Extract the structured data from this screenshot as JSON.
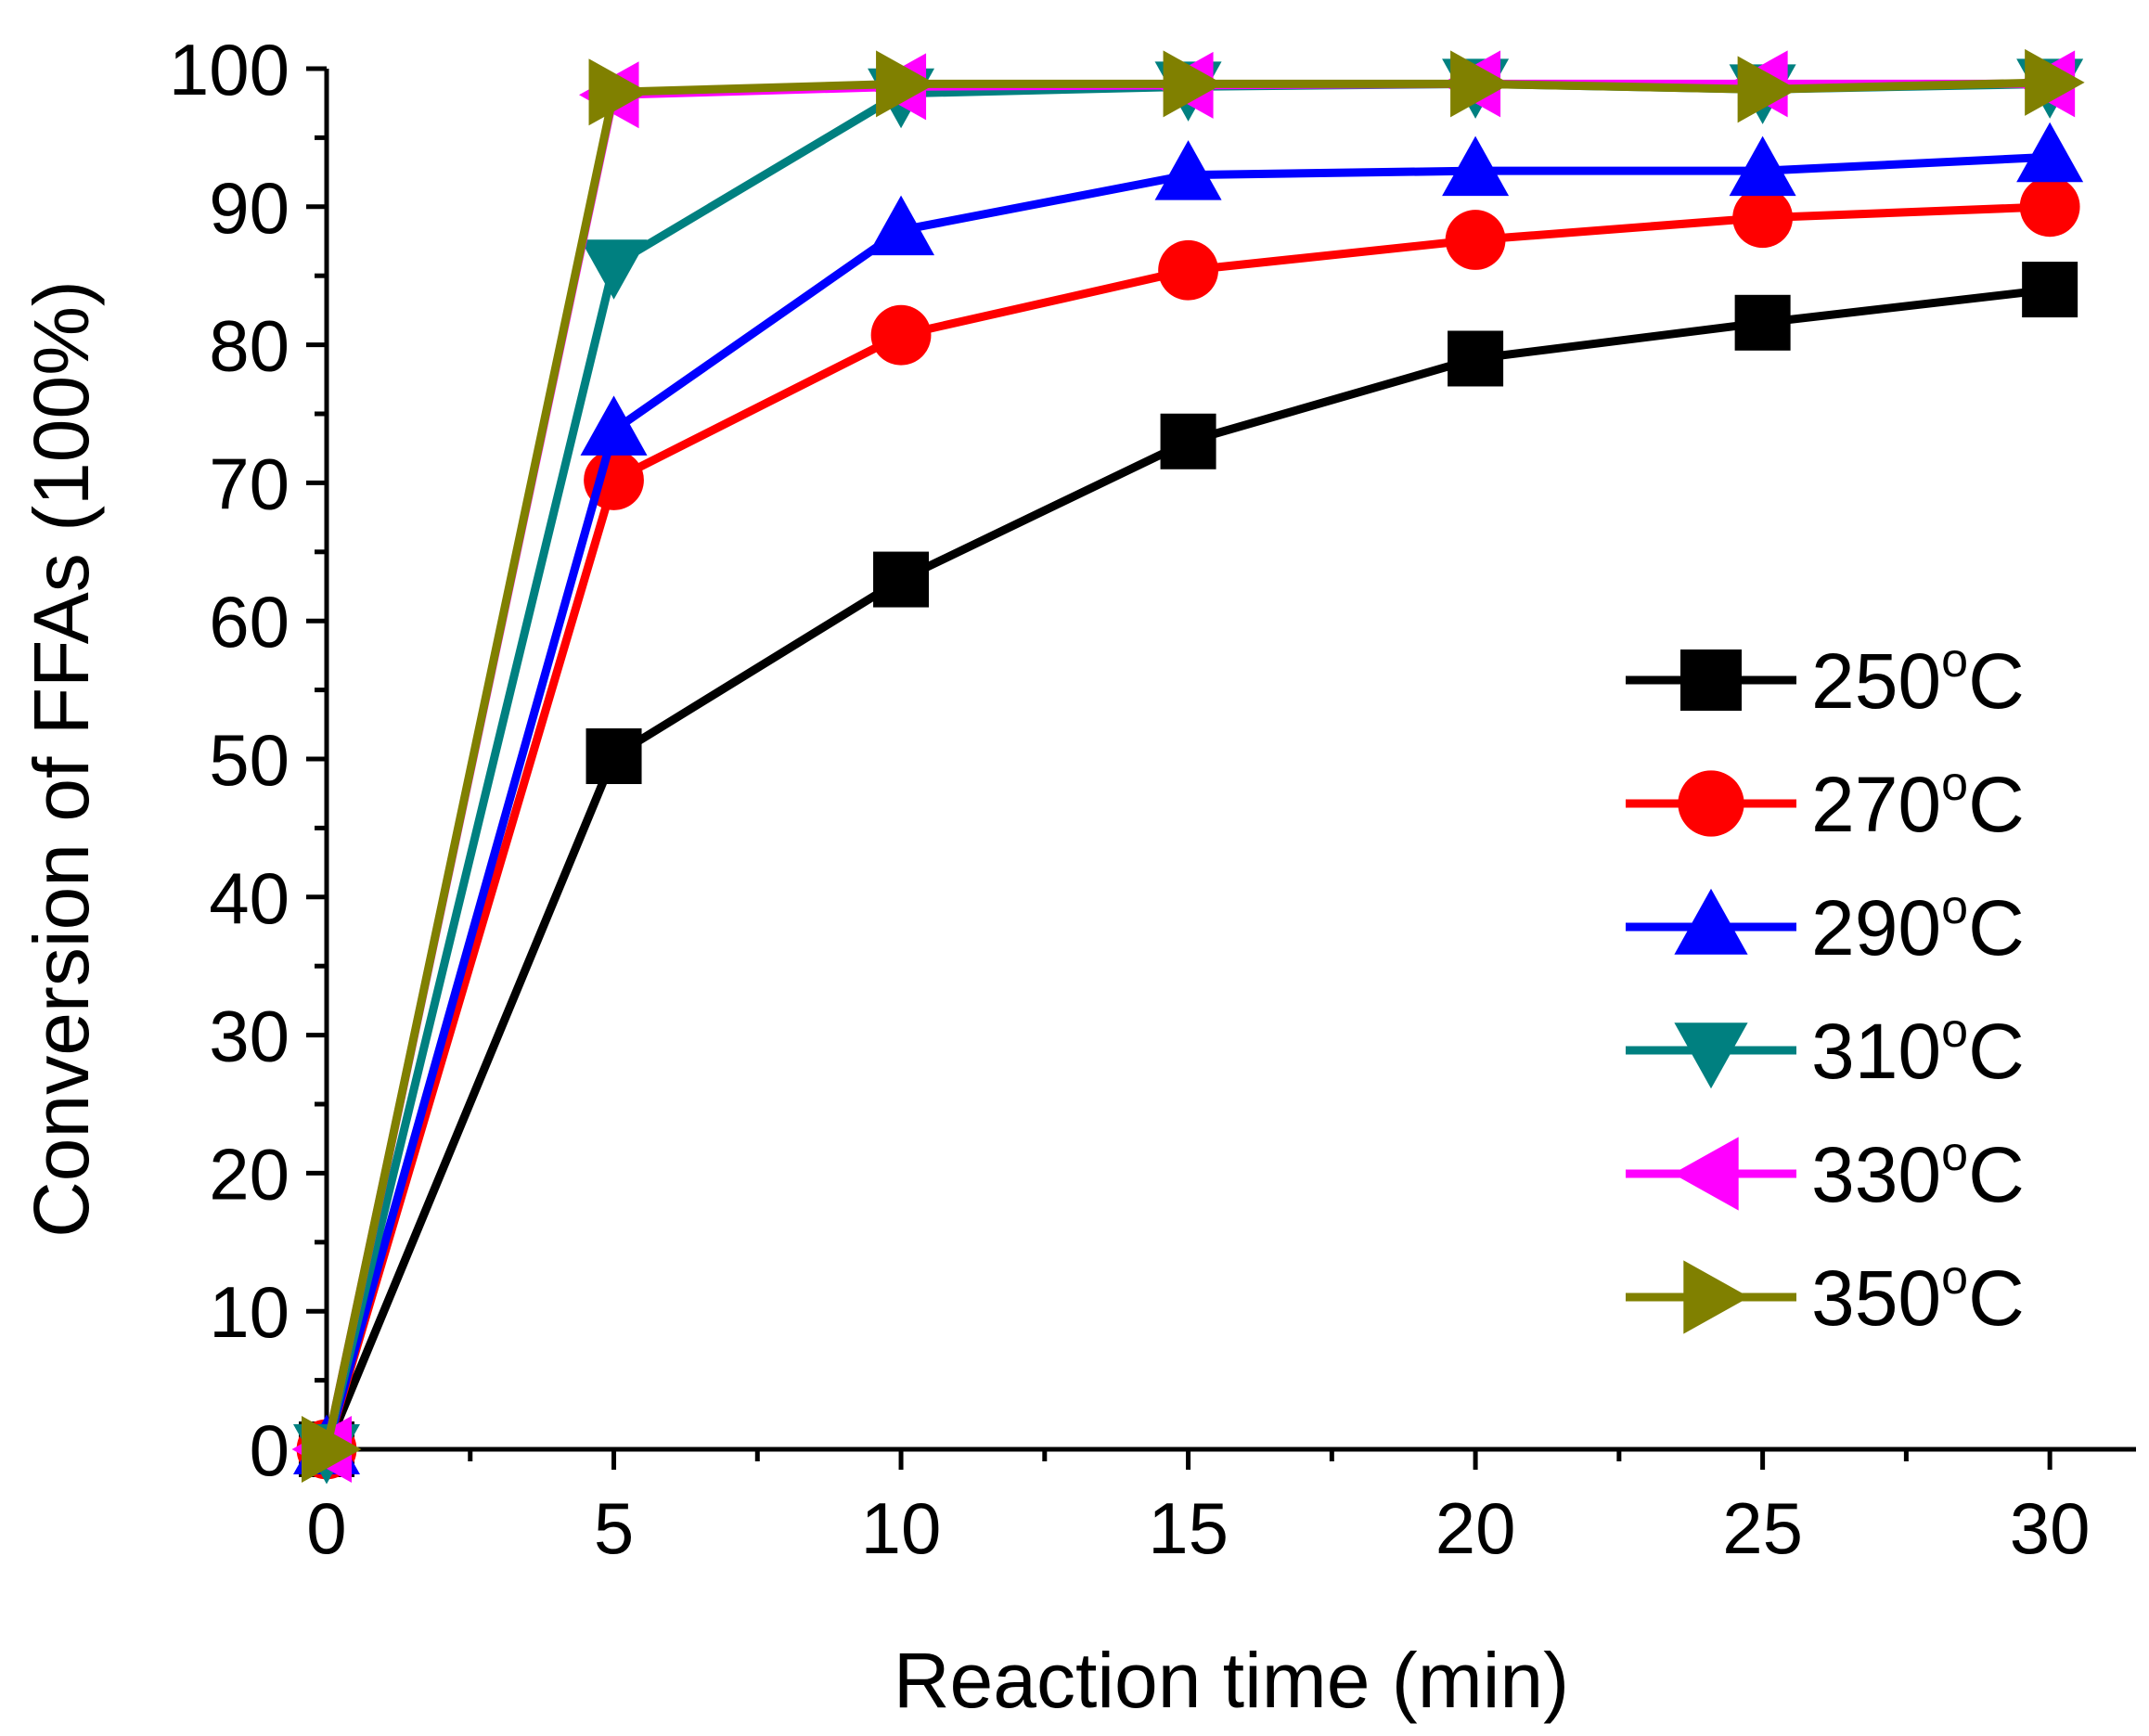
{
  "chart_data": {
    "type": "line",
    "title": "",
    "xlabel": "Reaction time (min)",
    "ylabel": "Conversion of FFAs (100%)",
    "xlim": [
      0,
      31.5
    ],
    "ylim": [
      0,
      100
    ],
    "x_ticks": [
      0,
      5,
      10,
      15,
      20,
      25,
      30
    ],
    "y_ticks": [
      0,
      10,
      20,
      30,
      40,
      50,
      60,
      70,
      80,
      90,
      100
    ],
    "x_tick_labels": [
      "0",
      "5",
      "10",
      "15",
      "20",
      "25",
      "30"
    ],
    "y_tick_labels": [
      "0",
      "10",
      "20",
      "30",
      "40",
      "50",
      "60",
      "70",
      "80",
      "90",
      "100"
    ],
    "legend_position": "center-right",
    "x": [
      0,
      5,
      10,
      15,
      20,
      25,
      30
    ],
    "series": [
      {
        "name": "250",
        "unit": "C",
        "degree": "o",
        "color": "#000000",
        "marker": "square",
        "values": [
          0,
          50.2,
          63.0,
          73.0,
          79.0,
          81.6,
          84.0
        ]
      },
      {
        "name": "270",
        "unit": "C",
        "degree": "o",
        "color": "#ff0000",
        "marker": "circle",
        "values": [
          0,
          70.2,
          80.7,
          85.4,
          87.6,
          89.2,
          90.0
        ]
      },
      {
        "name": "290",
        "unit": "C",
        "degree": "o",
        "color": "#0000ff",
        "marker": "triangle-up",
        "values": [
          0,
          73.8,
          88.3,
          92.3,
          92.6,
          92.6,
          93.6
        ]
      },
      {
        "name": "310",
        "unit": "C",
        "degree": "o",
        "color": "#008080",
        "marker": "triangle-down",
        "values": [
          0,
          85.8,
          98.2,
          98.7,
          98.9,
          98.5,
          98.9
        ]
      },
      {
        "name": "330",
        "unit": "C",
        "degree": "o",
        "color": "#ff00ff",
        "marker": "triangle-left",
        "values": [
          0,
          98.1,
          98.7,
          98.8,
          98.9,
          98.9,
          98.9
        ]
      },
      {
        "name": "350",
        "unit": "C",
        "degree": "o",
        "color": "#808000",
        "marker": "triangle-right",
        "values": [
          0,
          98.3,
          98.9,
          98.9,
          98.9,
          98.5,
          99.0
        ]
      }
    ]
  }
}
